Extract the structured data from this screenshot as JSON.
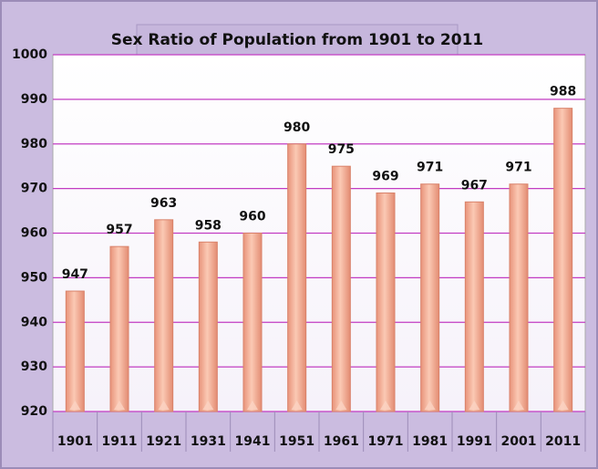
{
  "chart_data": {
    "type": "bar",
    "title": "Sex Ratio of Population from 1901 to 2011",
    "categories": [
      "1901",
      "1911",
      "1921",
      "1931",
      "1941",
      "1951",
      "1961",
      "1971",
      "1981",
      "1991",
      "2001",
      "2011"
    ],
    "values": [
      947,
      957,
      963,
      958,
      960,
      980,
      975,
      969,
      971,
      967,
      971,
      988
    ],
    "color": "#f4b49a",
    "ylim": [
      920,
      1000
    ],
    "yticks": [
      920,
      930,
      940,
      950,
      960,
      970,
      980,
      990,
      1000
    ],
    "grid": true
  }
}
